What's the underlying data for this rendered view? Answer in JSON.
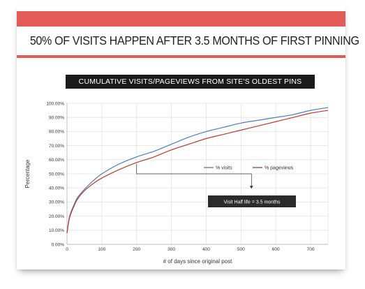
{
  "headline": "50% OF VISITS HAPPEN AFTER 3.5 MONTHS OF FIRST PINNING",
  "colors": {
    "accent": "#e45a57",
    "visits": "#4a7bc4",
    "pageviews": "#c0392b"
  },
  "chart_data": {
    "type": "line",
    "title": "CUMULATIVE VISITS/PAGEVIEWS FROM SITE'S OLDEST PINS",
    "xlabel": "# of days since original post",
    "ylabel": "Percentage",
    "xlim": [
      0,
      750
    ],
    "ylim": [
      0,
      100
    ],
    "x_ticks": [
      "0",
      "100",
      "200",
      "300",
      "400",
      "500",
      "600",
      "700"
    ],
    "y_ticks": [
      "0.00%",
      "10.00%",
      "20.00%",
      "30.00%",
      "40.00%",
      "50.00%",
      "60.00%",
      "70.00%",
      "80.00%",
      "90.00%",
      "100.00%"
    ],
    "grid": true,
    "legend_position": "center-right",
    "x": [
      0,
      5,
      10,
      20,
      30,
      50,
      75,
      100,
      150,
      200,
      250,
      300,
      350,
      400,
      450,
      500,
      550,
      600,
      650,
      700,
      750
    ],
    "series": [
      {
        "name": "% visits",
        "color": "#4a7bc4",
        "values": [
          8,
          17,
          22,
          28,
          33,
          39,
          45,
          50,
          57,
          62,
          66,
          71,
          76,
          80,
          83,
          86,
          88,
          90,
          92,
          95,
          97
        ]
      },
      {
        "name": "% pageviews",
        "color": "#c0392b",
        "values": [
          8,
          16,
          21,
          27,
          32,
          38,
          43,
          47,
          53,
          58,
          62,
          67,
          71,
          75,
          78,
          81,
          84,
          87,
          90,
          93,
          95
        ]
      }
    ],
    "annotation": {
      "text": "Visit Half life = 3.5 months",
      "x": 105,
      "y": 50
    }
  }
}
